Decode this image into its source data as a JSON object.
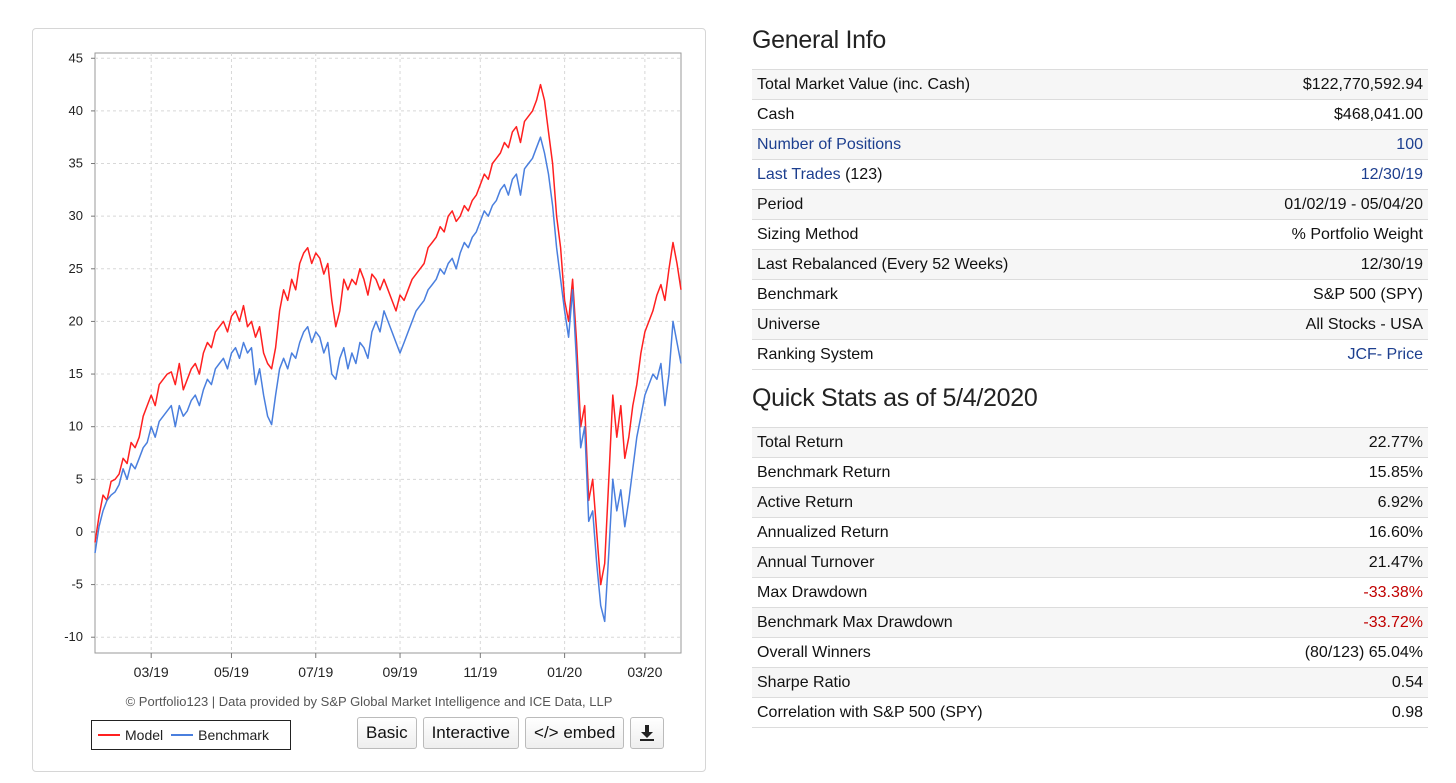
{
  "chart_data": {
    "type": "line",
    "xlabel": "",
    "ylabel": "",
    "x_tick_labels": [
      "03/19",
      "05/19",
      "07/19",
      "09/19",
      "11/19",
      "01/20",
      "03/20"
    ],
    "y_ticks": [
      45,
      40,
      35,
      30,
      25,
      20,
      15,
      10,
      5,
      0,
      -5,
      -10
    ],
    "ylim": [
      -11.5,
      45.5
    ],
    "grid": true,
    "legend_position": "bottom-left",
    "series": [
      {
        "name": "Model",
        "color": "#ff2020",
        "points": [
          [
            0,
            -1
          ],
          [
            1,
            1.5
          ],
          [
            2,
            3.5
          ],
          [
            3,
            3
          ],
          [
            4,
            4.8
          ],
          [
            5,
            5
          ],
          [
            6,
            5.5
          ],
          [
            7,
            7
          ],
          [
            8,
            6.5
          ],
          [
            9,
            8.5
          ],
          [
            10,
            8
          ],
          [
            11,
            9
          ],
          [
            12,
            11
          ],
          [
            13,
            12
          ],
          [
            14,
            13
          ],
          [
            15,
            12
          ],
          [
            16,
            14
          ],
          [
            17,
            14.5
          ],
          [
            18,
            15
          ],
          [
            19,
            15.2
          ],
          [
            20,
            14
          ],
          [
            21,
            16
          ],
          [
            22,
            13.5
          ],
          [
            23,
            14.5
          ],
          [
            24,
            15.5
          ],
          [
            25,
            16
          ],
          [
            26,
            15
          ],
          [
            27,
            17
          ],
          [
            28,
            18
          ],
          [
            29,
            17.5
          ],
          [
            30,
            19
          ],
          [
            31,
            19.5
          ],
          [
            32,
            20
          ],
          [
            33,
            19
          ],
          [
            34,
            20.5
          ],
          [
            35,
            21
          ],
          [
            36,
            20
          ],
          [
            37,
            21.5
          ],
          [
            38,
            19.5
          ],
          [
            39,
            20
          ],
          [
            40,
            18.5
          ],
          [
            41,
            19.5
          ],
          [
            42,
            17
          ],
          [
            43,
            16
          ],
          [
            44,
            15.5
          ],
          [
            45,
            17.5
          ],
          [
            46,
            21
          ],
          [
            47,
            23
          ],
          [
            48,
            22
          ],
          [
            49,
            24
          ],
          [
            50,
            23
          ],
          [
            51,
            25.5
          ],
          [
            52,
            26.5
          ],
          [
            53,
            27
          ],
          [
            54,
            25.5
          ],
          [
            55,
            26.5
          ],
          [
            56,
            26
          ],
          [
            57,
            24.5
          ],
          [
            58,
            25.5
          ],
          [
            59,
            22
          ],
          [
            60,
            19.5
          ],
          [
            61,
            21
          ],
          [
            62,
            24
          ],
          [
            63,
            23
          ],
          [
            64,
            24
          ],
          [
            65,
            23.5
          ],
          [
            66,
            25
          ],
          [
            67,
            24
          ],
          [
            68,
            22.5
          ],
          [
            69,
            24.5
          ],
          [
            70,
            24
          ],
          [
            71,
            23
          ],
          [
            72,
            24
          ],
          [
            73,
            23
          ],
          [
            74,
            22
          ],
          [
            75,
            21
          ],
          [
            76,
            22.5
          ],
          [
            77,
            22
          ],
          [
            78,
            23
          ],
          [
            79,
            24
          ],
          [
            80,
            24.5
          ],
          [
            81,
            25
          ],
          [
            82,
            25.5
          ],
          [
            83,
            27
          ],
          [
            84,
            27.5
          ],
          [
            85,
            28
          ],
          [
            86,
            29
          ],
          [
            87,
            28.5
          ],
          [
            88,
            30
          ],
          [
            89,
            30.5
          ],
          [
            90,
            29.5
          ],
          [
            91,
            30
          ],
          [
            92,
            31
          ],
          [
            93,
            30.5
          ],
          [
            94,
            31.5
          ],
          [
            95,
            32
          ],
          [
            96,
            33
          ],
          [
            97,
            34
          ],
          [
            98,
            33.5
          ],
          [
            99,
            35
          ],
          [
            100,
            35.5
          ],
          [
            101,
            36
          ],
          [
            102,
            37
          ],
          [
            103,
            36.5
          ],
          [
            104,
            38
          ],
          [
            105,
            38.5
          ],
          [
            106,
            37
          ],
          [
            107,
            39
          ],
          [
            108,
            39.5
          ],
          [
            109,
            40
          ],
          [
            110,
            41
          ],
          [
            111,
            42.5
          ],
          [
            112,
            41
          ],
          [
            113,
            38
          ],
          [
            114,
            35
          ],
          [
            115,
            30
          ],
          [
            116,
            27
          ],
          [
            117,
            22
          ],
          [
            118,
            20
          ],
          [
            119,
            24
          ],
          [
            120,
            18
          ],
          [
            121,
            10
          ],
          [
            122,
            12
          ],
          [
            123,
            3
          ],
          [
            124,
            5
          ],
          [
            125,
            0
          ],
          [
            126,
            -5
          ],
          [
            127,
            -3
          ],
          [
            128,
            5
          ],
          [
            129,
            13
          ],
          [
            130,
            9
          ],
          [
            131,
            12
          ],
          [
            132,
            7
          ],
          [
            133,
            9
          ],
          [
            134,
            12
          ],
          [
            135,
            14
          ],
          [
            136,
            17
          ],
          [
            137,
            19
          ],
          [
            138,
            20
          ],
          [
            139,
            21
          ],
          [
            140,
            22.5
          ],
          [
            141,
            23.5
          ],
          [
            142,
            22
          ],
          [
            143,
            25
          ],
          [
            144,
            27.5
          ],
          [
            145,
            25.5
          ],
          [
            146,
            23
          ]
        ]
      },
      {
        "name": "Benchmark",
        "color": "#4a7fde",
        "points": [
          [
            0,
            -2
          ],
          [
            1,
            0.5
          ],
          [
            2,
            2
          ],
          [
            3,
            3
          ],
          [
            4,
            3.5
          ],
          [
            5,
            3.8
          ],
          [
            6,
            4.5
          ],
          [
            7,
            6
          ],
          [
            8,
            5
          ],
          [
            9,
            6.5
          ],
          [
            10,
            6
          ],
          [
            11,
            7
          ],
          [
            12,
            8
          ],
          [
            13,
            8.5
          ],
          [
            14,
            10
          ],
          [
            15,
            9
          ],
          [
            16,
            10.5
          ],
          [
            17,
            11
          ],
          [
            18,
            11.5
          ],
          [
            19,
            12
          ],
          [
            20,
            10
          ],
          [
            21,
            12
          ],
          [
            22,
            11
          ],
          [
            23,
            11.5
          ],
          [
            24,
            12.5
          ],
          [
            25,
            13
          ],
          [
            26,
            12
          ],
          [
            27,
            13.5
          ],
          [
            28,
            14.5
          ],
          [
            29,
            14
          ],
          [
            30,
            15.5
          ],
          [
            31,
            16
          ],
          [
            32,
            16.5
          ],
          [
            33,
            15.5
          ],
          [
            34,
            17
          ],
          [
            35,
            17.5
          ],
          [
            36,
            16.5
          ],
          [
            37,
            18
          ],
          [
            38,
            17
          ],
          [
            39,
            17.5
          ],
          [
            40,
            14
          ],
          [
            41,
            15.5
          ],
          [
            42,
            13
          ],
          [
            43,
            11
          ],
          [
            44,
            10.2
          ],
          [
            45,
            13
          ],
          [
            46,
            15.5
          ],
          [
            47,
            16.5
          ],
          [
            48,
            15.5
          ],
          [
            49,
            17
          ],
          [
            50,
            16.5
          ],
          [
            51,
            18
          ],
          [
            52,
            19
          ],
          [
            53,
            19.5
          ],
          [
            54,
            18
          ],
          [
            55,
            19
          ],
          [
            56,
            18.5
          ],
          [
            57,
            17
          ],
          [
            58,
            18
          ],
          [
            59,
            15
          ],
          [
            60,
            14.5
          ],
          [
            61,
            16.5
          ],
          [
            62,
            17.5
          ],
          [
            63,
            15.5
          ],
          [
            64,
            17
          ],
          [
            65,
            16
          ],
          [
            66,
            18
          ],
          [
            67,
            17.5
          ],
          [
            68,
            16.5
          ],
          [
            69,
            19
          ],
          [
            70,
            20
          ],
          [
            71,
            19
          ],
          [
            72,
            21
          ],
          [
            73,
            20
          ],
          [
            74,
            19
          ],
          [
            75,
            18
          ],
          [
            76,
            17
          ],
          [
            77,
            18
          ],
          [
            78,
            19
          ],
          [
            79,
            20
          ],
          [
            80,
            21
          ],
          [
            81,
            21.5
          ],
          [
            82,
            22
          ],
          [
            83,
            23
          ],
          [
            84,
            23.5
          ],
          [
            85,
            24
          ],
          [
            86,
            25
          ],
          [
            87,
            24.5
          ],
          [
            88,
            25.5
          ],
          [
            89,
            26
          ],
          [
            90,
            25
          ],
          [
            91,
            26.5
          ],
          [
            92,
            27.5
          ],
          [
            93,
            27
          ],
          [
            94,
            28
          ],
          [
            95,
            28.5
          ],
          [
            96,
            29.5
          ],
          [
            97,
            30.5
          ],
          [
            98,
            30
          ],
          [
            99,
            31
          ],
          [
            100,
            31.5
          ],
          [
            101,
            32.5
          ],
          [
            102,
            33
          ],
          [
            103,
            32
          ],
          [
            104,
            33.5
          ],
          [
            105,
            34
          ],
          [
            106,
            32
          ],
          [
            107,
            34.5
          ],
          [
            108,
            35
          ],
          [
            109,
            35.5
          ],
          [
            110,
            36.5
          ],
          [
            111,
            37.5
          ],
          [
            112,
            36
          ],
          [
            113,
            34
          ],
          [
            114,
            31
          ],
          [
            115,
            27
          ],
          [
            116,
            24
          ],
          [
            117,
            21
          ],
          [
            118,
            18.5
          ],
          [
            119,
            23
          ],
          [
            120,
            16
          ],
          [
            121,
            8
          ],
          [
            122,
            10
          ],
          [
            123,
            1
          ],
          [
            124,
            2
          ],
          [
            125,
            -3
          ],
          [
            126,
            -7
          ],
          [
            127,
            -8.5
          ],
          [
            128,
            -2
          ],
          [
            129,
            5
          ],
          [
            130,
            2
          ],
          [
            131,
            4
          ],
          [
            132,
            0.5
          ],
          [
            133,
            3
          ],
          [
            134,
            6
          ],
          [
            135,
            9
          ],
          [
            136,
            11
          ],
          [
            137,
            13
          ],
          [
            138,
            14
          ],
          [
            139,
            15
          ],
          [
            140,
            14.5
          ],
          [
            141,
            16
          ],
          [
            142,
            12
          ],
          [
            143,
            15
          ],
          [
            144,
            20
          ],
          [
            145,
            18
          ],
          [
            146,
            16
          ]
        ]
      }
    ],
    "x_domain": [
      0,
      146
    ],
    "x_tick_positions": [
      14,
      34,
      55,
      76,
      96,
      117,
      137
    ]
  },
  "credit": "© Portfolio123 | Data provided by S&P Global Market Intelligence and ICE Data, LLP",
  "legend": {
    "model": "Model",
    "benchmark": "Benchmark"
  },
  "buttons": {
    "basic": "Basic",
    "interactive": "Interactive",
    "embed": "</> embed",
    "download_icon": "download-icon"
  },
  "general_info": {
    "title": "General Info",
    "total_market_value_label": "Total Market Value (inc. Cash)",
    "total_market_value": "$122,770,592.94",
    "cash_label": "Cash",
    "cash": "$468,041.00",
    "positions_label": "Number of Positions",
    "positions": "100",
    "last_trades_label": "Last Trades",
    "last_trades_count": "(123)",
    "last_trades": "12/30/19",
    "period_label": "Period",
    "period": "01/02/19 - 05/04/20",
    "sizing_label": "Sizing Method",
    "sizing": "% Portfolio Weight",
    "rebalanced_label": "Last Rebalanced (Every 52 Weeks)",
    "rebalanced": "12/30/19",
    "benchmark_label": "Benchmark",
    "benchmark": "S&P 500 (SPY)",
    "universe_label": "Universe",
    "universe": "All Stocks - USA",
    "ranking_label": "Ranking System",
    "ranking": "JCF- Price"
  },
  "quick_stats": {
    "title": "Quick Stats as of 5/4/2020",
    "total_return_label": "Total Return",
    "total_return": "22.77%",
    "benchmark_return_label": "Benchmark Return",
    "benchmark_return": "15.85%",
    "active_return_label": "Active Return",
    "active_return": "6.92%",
    "annualized_return_label": "Annualized Return",
    "annualized_return": "16.60%",
    "turnover_label": "Annual Turnover",
    "turnover": "21.47%",
    "max_drawdown_label": "Max Drawdown",
    "max_drawdown": "-33.38%",
    "bench_max_drawdown_label": "Benchmark Max Drawdown",
    "bench_max_drawdown": "-33.72%",
    "winners_label": "Overall Winners",
    "winners": "(80/123) 65.04%",
    "sharpe_label": "Sharpe Ratio",
    "sharpe": "0.54",
    "correlation_label": "Correlation with S&P 500 (SPY)",
    "correlation": "0.98"
  },
  "colors": {
    "link": "#1d3f8f",
    "negative": "#c00000"
  }
}
